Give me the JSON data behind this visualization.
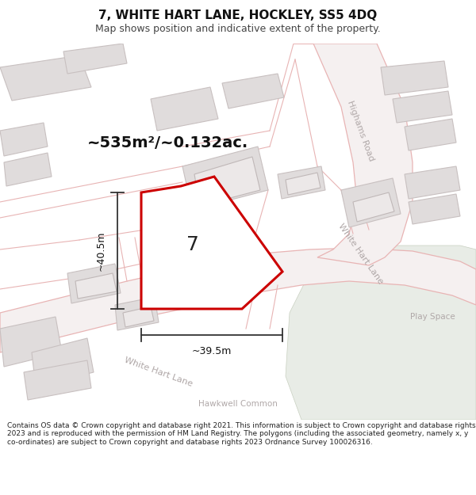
{
  "title": "7, WHITE HART LANE, HOCKLEY, SS5 4DQ",
  "subtitle": "Map shows position and indicative extent of the property.",
  "area_text": "~535m²/~0.132ac.",
  "width_label": "~39.5m",
  "height_label": "~40.5m",
  "number_label": "7",
  "play_space_label": "Play Space",
  "hawkwell_label": "Hawkwell Common",
  "white_hart_lane_label1": "White Hart Lane",
  "white_hart_lane_label2": "White Hart Lane",
  "highams_road_label": "Highams Road",
  "footer_text": "Contains OS data © Crown copyright and database right 2021. This information is subject to Crown copyright and database rights 2023 and is reproduced with the permission of HM Land Registry. The polygons (including the associated geometry, namely x, y co-ordinates) are subject to Crown copyright and database rights 2023 Ordnance Survey 100026316.",
  "map_bg": "#f7f5f5",
  "green_color": "#e8ece6",
  "road_line_color": "#e8b4b4",
  "building_fill": "#e0dcdc",
  "building_edge": "#c8c0c0",
  "building_inner": "#d0cccc",
  "property_fill": "#ffffff",
  "property_stroke": "#cc0000",
  "arrow_color": "#333333",
  "label_color": "#b0a8a8",
  "text_dark": "#222222",
  "title_size": 11,
  "subtitle_size": 9,
  "area_size": 14,
  "dim_size": 9,
  "road_label_size": 8,
  "map_label_size": 7.5,
  "footer_size": 6.5
}
